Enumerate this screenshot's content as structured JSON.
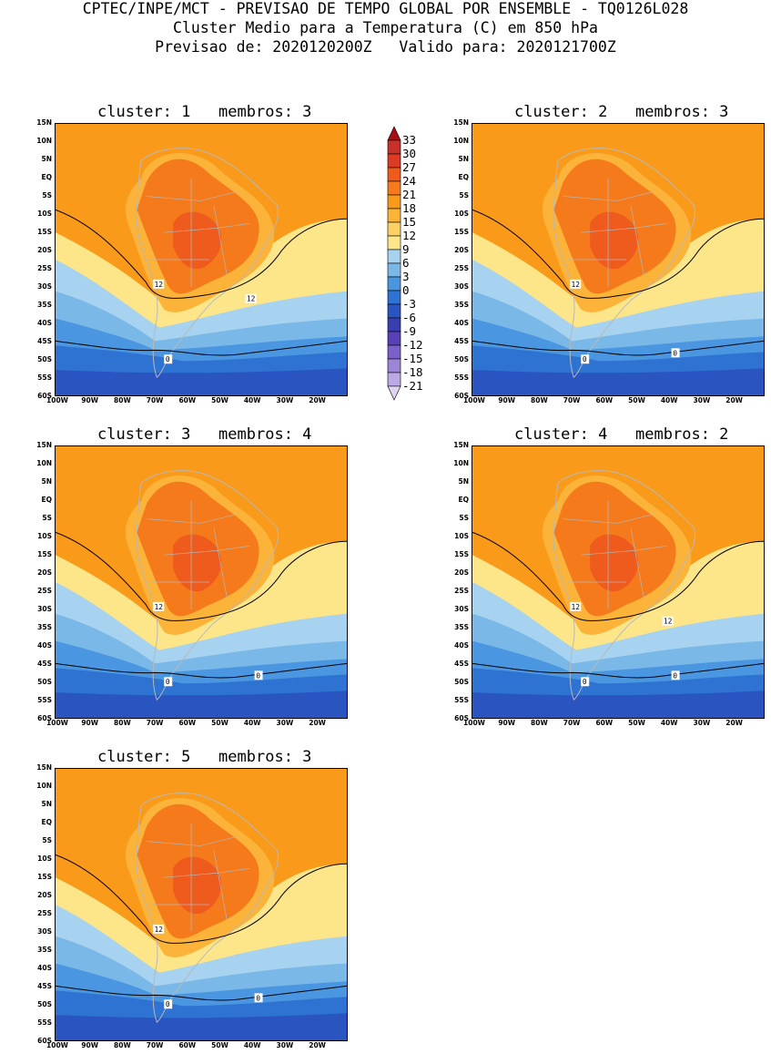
{
  "header": {
    "line1": "CPTEC/INPE/MCT - PREVISAO DE TEMPO GLOBAL POR ENSEMBLE - TQ0126L028",
    "line2": "Cluster Medio para a Temperatura (C) em 850 hPa",
    "line3": "Previsao de: 2020120200Z   Valido para: 2020121700Z"
  },
  "lat_labels": [
    "15N",
    "10N",
    "5N",
    "EQ",
    "5S",
    "10S",
    "15S",
    "20S",
    "25S",
    "30S",
    "35S",
    "40S",
    "45S",
    "50S",
    "55S",
    "60S"
  ],
  "lon_labels": [
    "100W",
    "90W",
    "80W",
    "70W",
    "60W",
    "50W",
    "40W",
    "30W",
    "20W"
  ],
  "colorbar": {
    "levels": [
      "33",
      "30",
      "27",
      "24",
      "21",
      "18",
      "15",
      "12",
      "9",
      "6",
      "3",
      "0",
      "-3",
      "-6",
      "-9",
      "-12",
      "-15",
      "-18",
      "-21"
    ],
    "colors": [
      "#a50f15",
      "#c8302b",
      "#dd3a24",
      "#ef5a1d",
      "#f57a1c",
      "#f99a1a",
      "#fbb33a",
      "#fcd063",
      "#fde68a",
      "#a7d2f0",
      "#7ab8e8",
      "#4a96e0",
      "#2f73d2",
      "#2a55c0",
      "#3a3fb0",
      "#5740b8",
      "#7a60c8",
      "#9c84d6",
      "#bca8e2",
      "#e0d4f2"
    ]
  },
  "panels": [
    {
      "title": "cluster: 1   membros: 3",
      "contour12_label": "12",
      "contour12_label2": "12",
      "contour0_label": "0",
      "contour0_label2": ""
    },
    {
      "title": "cluster: 2   membros: 3",
      "contour12_label": "12",
      "contour12_label2": "",
      "contour0_label": "0",
      "contour0_label2": "0"
    },
    {
      "title": "cluster: 3   membros: 4",
      "contour12_label": "12",
      "contour12_label2": "",
      "contour0_label": "0",
      "contour0_label2": "0"
    },
    {
      "title": "cluster: 4   membros: 2",
      "contour12_label": "12",
      "contour12_label2": "12",
      "contour0_label": "0",
      "contour0_label2": "0"
    },
    {
      "title": "cluster: 5   membros: 3",
      "contour12_label": "12",
      "contour12_label2": "",
      "contour0_label": "0",
      "contour0_label2": "0"
    }
  ]
}
